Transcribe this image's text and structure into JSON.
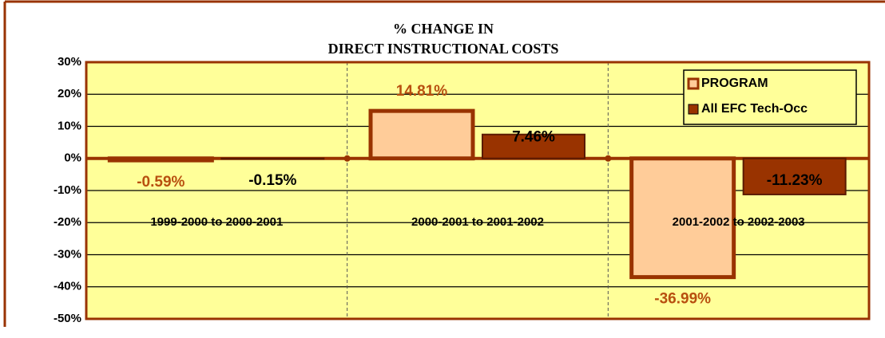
{
  "chart_data": {
    "type": "bar",
    "title": [
      "% CHANGE IN",
      "DIRECT INSTRUCTIONAL COSTS"
    ],
    "categories": [
      "1999-2000 to 2000-2001",
      "2000-2001 to 2001-2002",
      "2001-2002 to 2002-2003"
    ],
    "series": [
      {
        "name": "PROGRAM",
        "color": "#ffcc99",
        "values": [
          -0.59,
          14.81,
          -36.99
        ],
        "value_labels": [
          "-0.59%",
          "14.81%",
          "-36.99%"
        ]
      },
      {
        "name": "All EFC Tech-Occ",
        "color": "#993300",
        "values": [
          -0.15,
          7.46,
          -11.23
        ],
        "value_labels": [
          "-0.15%",
          "7.46%",
          "-11.23%"
        ]
      }
    ],
    "ylim": [
      -50,
      30
    ],
    "yticks": [
      {
        "value": -50,
        "label": "-50%"
      },
      {
        "value": -40,
        "label": "-40%"
      },
      {
        "value": -30,
        "label": "-30%"
      },
      {
        "value": -20,
        "label": "-20%"
      },
      {
        "value": -10,
        "label": "-10%"
      },
      {
        "value": 0,
        "label": "0%"
      },
      {
        "value": 10,
        "label": "10%"
      },
      {
        "value": 20,
        "label": "20%"
      },
      {
        "value": 30,
        "label": "30%"
      }
    ],
    "grid": true,
    "legend": "top-right"
  }
}
